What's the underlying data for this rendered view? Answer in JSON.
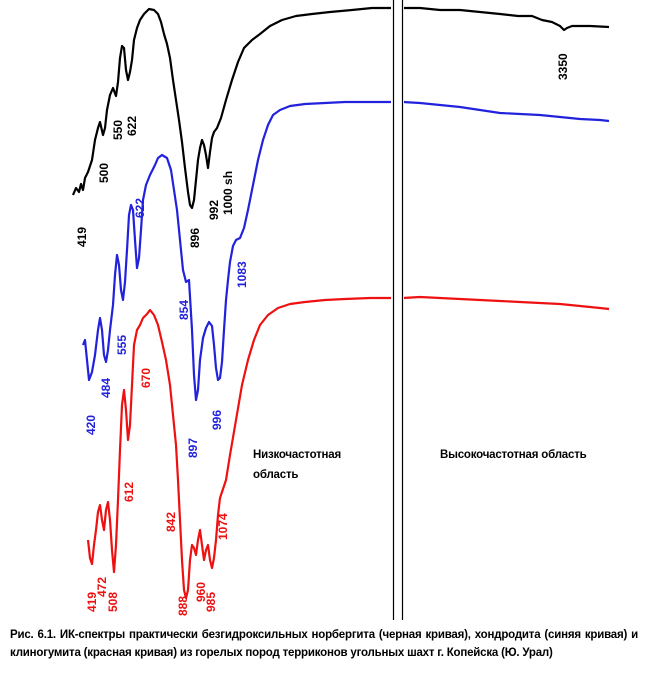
{
  "chart_data": {
    "type": "line",
    "title": "",
    "xlabel": "",
    "ylabel": "",
    "regions": {
      "low": [
        "Низкочастотная",
        "область"
      ],
      "high": "Высокочастотная область"
    },
    "series": [
      {
        "color": "#000000",
        "peaks": [
          {
            "label": "419"
          },
          {
            "label": "500"
          },
          {
            "label": "550"
          },
          {
            "label": "622"
          },
          {
            "label": "896"
          },
          {
            "label": "992"
          },
          {
            "label": "1000 sh"
          },
          {
            "label": "3350"
          }
        ]
      },
      {
        "color": "#2222dd",
        "peaks": [
          {
            "label": "420"
          },
          {
            "label": "484"
          },
          {
            "label": "555"
          },
          {
            "label": "622"
          },
          {
            "label": "854"
          },
          {
            "label": "897"
          },
          {
            "label": "996"
          },
          {
            "label": "1083"
          }
        ]
      },
      {
        "color": "#ee1111",
        "peaks": [
          {
            "label": "419"
          },
          {
            "label": "472"
          },
          {
            "label": "508"
          },
          {
            "label": "612"
          },
          {
            "label": "670"
          },
          {
            "label": "842"
          },
          {
            "label": "888"
          },
          {
            "label": "960"
          },
          {
            "label": "985"
          },
          {
            "label": "1074"
          }
        ]
      }
    ]
  },
  "caption": "Рис. 6.1. ИК-спектры практически безгидроксильных норбергита (черная кривая), хондродита (синяя кривая) и клиногумита (красная кривая) из горелых пород терриконов угольных шахт г. Копейска (Ю. Урал)"
}
